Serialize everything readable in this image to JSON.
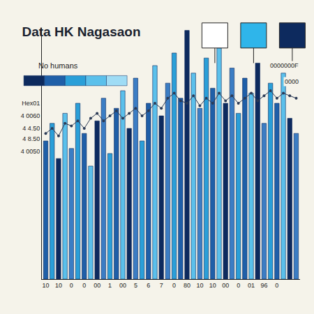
{
  "chart_data": {
    "type": "bar",
    "title": "Data HK Nagasaon",
    "subtitle": "No humans",
    "annotations": [
      "0000000F",
      "0000"
    ],
    "categories": [
      "10",
      null,
      "10",
      null,
      "0",
      null,
      "0",
      null,
      "00",
      null,
      "1",
      null,
      "00",
      null,
      "5",
      null,
      "6",
      null,
      "7",
      null,
      "0",
      null,
      "80",
      null,
      "10",
      null,
      "10",
      null,
      "00",
      null,
      "0",
      null,
      "01",
      null,
      "96",
      null,
      "0",
      null,
      null,
      null
    ],
    "series": [
      {
        "type": "bar",
        "values": [
          55,
          62,
          48,
          66,
          52,
          70,
          58,
          45,
          63,
          72,
          50,
          68,
          75,
          60,
          80,
          55,
          70,
          85,
          65,
          78,
          90,
          72,
          99,
          82,
          68,
          88,
          76,
          92,
          70,
          84,
          66,
          80,
          74,
          86,
          62,
          78,
          70,
          82,
          64,
          58
        ],
        "colors": [
          "#1f5fa8",
          "#2a9fd8",
          "#0d2a5e",
          "#5bc0eb",
          "#3b7dc4",
          "#2a9fd8",
          "#1f5fa8",
          "#5bc0eb",
          "#0d2a5e",
          "#3b7dc4",
          "#2a9fd8",
          "#1f5fa8",
          "#5bc0eb",
          "#0d2a5e",
          "#3b7dc4",
          "#2a9fd8",
          "#1f5fa8",
          "#5bc0eb",
          "#0d2a5e",
          "#3b7dc4",
          "#2a9fd8",
          "#1f5fa8",
          "#0d2a5e",
          "#5bc0eb",
          "#3b7dc4",
          "#2a9fd8",
          "#1f5fa8",
          "#5bc0eb",
          "#0d2a5e",
          "#3b7dc4",
          "#2a9fd8",
          "#1f5fa8",
          "#5bc0eb",
          "#0d2a5e",
          "#3b7dc4",
          "#2a9fd8",
          "#1f5fa8",
          "#5bc0eb",
          "#0d2a5e",
          "#3b7dc4"
        ]
      },
      {
        "type": "line",
        "color": "#2b3a55",
        "marker": "circle",
        "values": [
          58,
          60,
          57,
          62,
          61,
          63,
          60,
          64,
          66,
          63,
          65,
          67,
          64,
          66,
          68,
          65,
          67,
          70,
          68,
          72,
          74,
          71,
          70,
          73,
          69,
          72,
          70,
          74,
          71,
          73,
          70,
          72,
          74,
          71,
          73,
          75,
          72,
          74,
          73,
          72
        ]
      }
    ],
    "ylim": [
      0,
      100
    ],
    "yticks": [
      {
        "value": 70,
        "label": "Hex01"
      },
      {
        "value": 65,
        "label": "4 0060"
      },
      {
        "value": 60,
        "label": "4 4.50"
      },
      {
        "value": 56,
        "label": "4 8.50"
      },
      {
        "value": 51,
        "label": "4 0050"
      }
    ],
    "grid": false
  }
}
